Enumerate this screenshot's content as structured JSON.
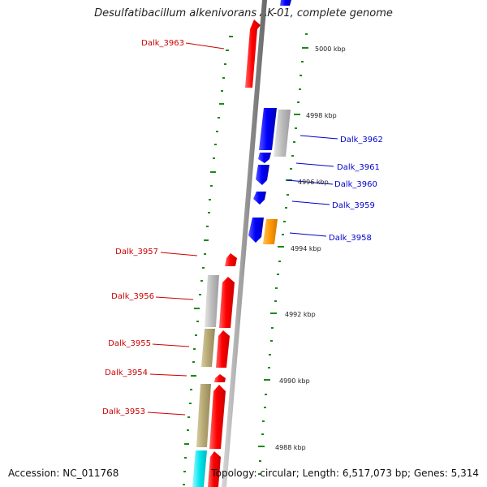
{
  "title": "Desulfatibacillum alkenivorans AK-01, complete genome",
  "accession_label": "Accession: NC_011768",
  "topology_label": "Topology: circular; Length: 6,517,073 bp; Genes: 5,314",
  "colors": {
    "backbone": "#9a9a9a",
    "tick": "#1a8a1a",
    "reverse_strand_gene": "#ff0000",
    "forward_strand_gene": "#0000ff",
    "reverse_label": "#cc0000",
    "forward_label": "#0000cc",
    "gray_feature": "#bbbbbb",
    "tan_feature": "#b5a774",
    "orange_feature": "#ff9900",
    "cyan_feature": "#00e5ee"
  },
  "scale_labels": [
    "5000 kbp",
    "4998 kbp",
    "4996 kbp",
    "4994 kbp",
    "4992 kbp",
    "4990 kbp",
    "4988 kbp"
  ],
  "gene_labels": {
    "reverse": [
      "Dalk_3963",
      "Dalk_3957",
      "Dalk_3956",
      "Dalk_3955",
      "Dalk_3954",
      "Dalk_3953"
    ],
    "forward": [
      "Dalk_3962",
      "Dalk_3961",
      "Dalk_3960",
      "Dalk_3959",
      "Dalk_3958"
    ]
  }
}
